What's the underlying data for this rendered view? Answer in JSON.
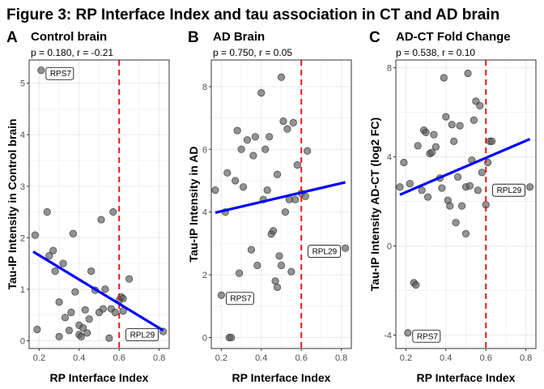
{
  "figure_title": "Figure 3: RP Interface Index and tau association in CT and AD brain",
  "colors": {
    "points": "#595959",
    "point_stroke": "#1a1a1a",
    "fit_line": "#0000ff",
    "threshold_line": "#e41a1c",
    "grid": "#ebebeb",
    "panel_border": "#333333"
  },
  "chart_data": [
    {
      "type": "scatter",
      "panel_letter": "A",
      "title": "Control brain",
      "subtitle": "p = 0.180, r = -0.21",
      "xlabel": "RP Interface Index",
      "ylabel": "Tau-IP Intensity in Control brain",
      "xlim": [
        0.15,
        0.85
      ],
      "ylim": [
        -0.15,
        5.45
      ],
      "xticks": [
        0.2,
        0.4,
        0.6,
        0.8
      ],
      "xtick_labels": [
        "0.2",
        "0.4",
        "0.6",
        "0.8"
      ],
      "yticks": [
        0,
        1,
        2,
        3,
        4,
        5
      ],
      "ytick_labels": [
        "0",
        "1",
        "2",
        "3",
        "4",
        "5"
      ],
      "threshold_x": 0.6,
      "fit_line": {
        "x": [
          0.17,
          0.82
        ],
        "y": [
          1.73,
          0.2
        ]
      },
      "x": [
        0.21,
        0.18,
        0.19,
        0.24,
        0.25,
        0.27,
        0.28,
        0.3,
        0.3,
        0.32,
        0.33,
        0.35,
        0.36,
        0.37,
        0.38,
        0.4,
        0.4,
        0.41,
        0.42,
        0.43,
        0.44,
        0.45,
        0.46,
        0.48,
        0.5,
        0.51,
        0.52,
        0.53,
        0.55,
        0.56,
        0.57,
        0.58,
        0.6,
        0.61,
        0.62,
        0.62,
        0.65,
        0.82
      ],
      "y": [
        5.25,
        2.05,
        0.22,
        2.5,
        1.65,
        1.75,
        1.35,
        0.75,
        0.08,
        1.5,
        0.45,
        0.2,
        0.55,
        2.08,
        0.95,
        0.3,
        0.12,
        0.08,
        0.25,
        0.6,
        0.15,
        0.42,
        1.35,
        0.98,
        0.55,
        2.35,
        0.62,
        1.0,
        0.05,
        0.62,
        2.5,
        0.55,
        0.78,
        0.85,
        0.82,
        0.58,
        1.2,
        0.18
      ],
      "annotations": [
        {
          "text": "RPS7",
          "x": 0.21,
          "y": 5.25,
          "side": "right"
        },
        {
          "text": "RPL29",
          "x": 0.82,
          "y": 0.18,
          "side": "left"
        }
      ]
    },
    {
      "type": "scatter",
      "panel_letter": "B",
      "title": "AD Brain",
      "subtitle": "p = 0.750, r = 0.05",
      "xlabel": "RP Interface Index",
      "ylabel": "Tau-IP Intensity in AD",
      "xlim": [
        0.15,
        0.85
      ],
      "ylim": [
        -0.35,
        8.85
      ],
      "xticks": [
        0.2,
        0.4,
        0.6,
        0.8
      ],
      "xtick_labels": [
        "0.2",
        "0.4",
        "0.6",
        "0.8"
      ],
      "yticks": [
        0,
        2,
        4,
        6,
        8
      ],
      "ytick_labels": [
        "0",
        "2",
        "4",
        "6",
        "8"
      ],
      "threshold_x": 0.6,
      "fit_line": {
        "x": [
          0.17,
          0.82
        ],
        "y": [
          3.98,
          4.95
        ]
      },
      "x": [
        0.17,
        0.2,
        0.22,
        0.23,
        0.24,
        0.25,
        0.27,
        0.28,
        0.29,
        0.3,
        0.31,
        0.33,
        0.35,
        0.36,
        0.37,
        0.38,
        0.4,
        0.41,
        0.42,
        0.43,
        0.44,
        0.45,
        0.46,
        0.47,
        0.48,
        0.48,
        0.49,
        0.5,
        0.5,
        0.51,
        0.52,
        0.53,
        0.54,
        0.55,
        0.56,
        0.57,
        0.58,
        0.6,
        0.62,
        0.63,
        0.82
      ],
      "y": [
        4.7,
        1.35,
        4.0,
        5.25,
        0.0,
        0.0,
        5.0,
        6.6,
        2.05,
        6.0,
        4.8,
        6.3,
        2.8,
        5.8,
        6.4,
        2.3,
        7.8,
        4.4,
        6.0,
        4.7,
        6.4,
        3.3,
        3.4,
        1.8,
        1.6,
        5.2,
        2.6,
        8.3,
        2.3,
        6.9,
        4.0,
        6.65,
        4.4,
        2.1,
        6.85,
        4.4,
        5.5,
        4.6,
        4.5,
        5.95,
        2.85
      ],
      "annotations": [
        {
          "text": "RPS7",
          "x": 0.2,
          "y": 1.35,
          "side": "right"
        },
        {
          "text": "RPL29",
          "x": 0.82,
          "y": 2.85,
          "side": "left"
        }
      ]
    },
    {
      "type": "scatter",
      "panel_letter": "C",
      "title": "AD-CT Fold Change",
      "subtitle": "p = 0.538, r = 0.10",
      "xlabel": "RP Interface Index",
      "ylabel": "Tau-IP Intensity AD-CT (log2 FC)",
      "xlim": [
        0.15,
        0.85
      ],
      "ylim": [
        -4.6,
        8.35
      ],
      "xticks": [
        0.2,
        0.4,
        0.6,
        0.8
      ],
      "xtick_labels": [
        "0.2",
        "0.4",
        "0.6",
        "0.8"
      ],
      "yticks": [
        -4,
        0,
        4,
        8
      ],
      "ytick_labels": [
        "-4",
        "0",
        "4",
        "8"
      ],
      "threshold_x": 0.6,
      "fit_line": {
        "x": [
          0.17,
          0.82
        ],
        "y": [
          2.3,
          4.8
        ]
      },
      "x": [
        0.17,
        0.19,
        0.21,
        0.22,
        0.24,
        0.25,
        0.26,
        0.28,
        0.29,
        0.3,
        0.31,
        0.32,
        0.33,
        0.34,
        0.35,
        0.37,
        0.38,
        0.39,
        0.4,
        0.41,
        0.42,
        0.43,
        0.44,
        0.45,
        0.46,
        0.47,
        0.48,
        0.5,
        0.5,
        0.51,
        0.52,
        0.53,
        0.54,
        0.55,
        0.56,
        0.57,
        0.58,
        0.6,
        0.61,
        0.62,
        0.63,
        0.82
      ],
      "y": [
        2.65,
        3.75,
        -3.9,
        2.8,
        -1.65,
        -1.75,
        4.5,
        2.5,
        5.2,
        5.1,
        2.2,
        4.15,
        4.2,
        5.0,
        4.45,
        3.05,
        2.6,
        7.55,
        5.8,
        2.05,
        1.8,
        5.45,
        4.7,
        1.05,
        3.1,
        5.4,
        1.8,
        2.65,
        0.55,
        7.75,
        2.7,
        3.85,
        5.65,
        6.5,
        2.5,
        6.3,
        3.3,
        1.85,
        3.75,
        4.7,
        4.7,
        2.65
      ],
      "annotations": [
        {
          "text": "RPS7",
          "x": 0.21,
          "y": -3.9,
          "side": "right"
        },
        {
          "text": "RPL29",
          "x": 0.82,
          "y": 2.65,
          "side": "left"
        }
      ]
    }
  ]
}
